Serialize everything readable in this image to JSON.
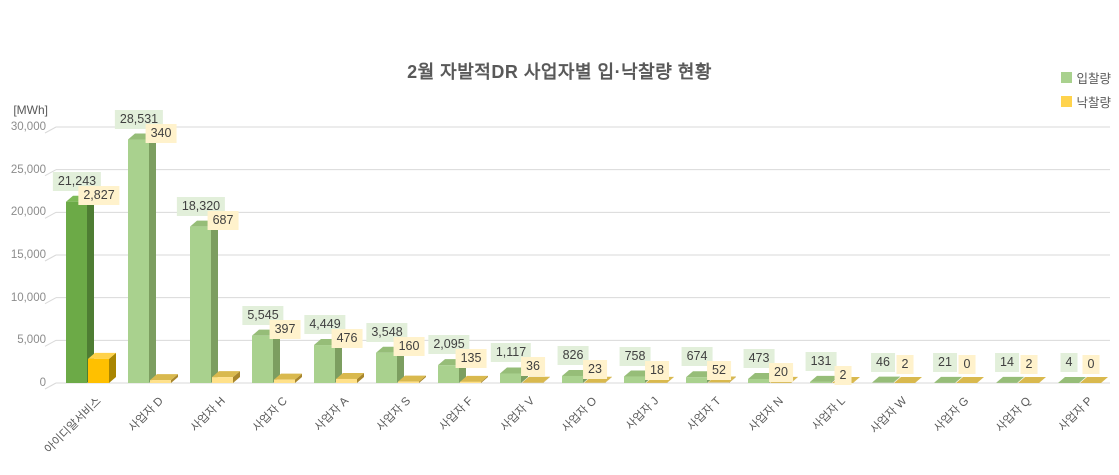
{
  "chart_data": {
    "type": "bar",
    "style": "3d-column",
    "title": "2월 자발적DR 사업자별 입·낙찰량 현황",
    "unit_label": "[MWh]",
    "categories": [
      "아이디알서비스",
      "사업자 D",
      "사업자 H",
      "사업자 C",
      "사업자 A",
      "사업자 S",
      "사업자 F",
      "사업자 V",
      "사업자 O",
      "사업자 J",
      "사업자 T",
      "사업자 N",
      "사업자 L",
      "사업자 W",
      "사업자 G",
      "사업자 Q",
      "사업자 P"
    ],
    "series": [
      {
        "name": "입찰량",
        "values": [
          21243,
          28531,
          18320,
          5545,
          4449,
          3548,
          2095,
          1117,
          826,
          758,
          674,
          473,
          131,
          46,
          21,
          14,
          4
        ],
        "colors": {
          "front": "#a9d18e",
          "top": "#96bd78",
          "side": "#7c9e60"
        },
        "highlight_colors": {
          "front": "#6caa47",
          "top": "#7eba57",
          "side": "#4e7d33"
        },
        "label_bg": "#e2efda",
        "legend_color": "#a9d18e"
      },
      {
        "name": "낙찰량",
        "values": [
          2827,
          340,
          687,
          397,
          476,
          160,
          135,
          36,
          23,
          18,
          52,
          20,
          2,
          2,
          0,
          2,
          0
        ],
        "colors": {
          "front": "#ffe18a",
          "top": "#d9b94e",
          "side": "#a8862c"
        },
        "highlight_colors": {
          "front": "#ffc000",
          "top": "#ffd24b",
          "side": "#a98500"
        },
        "label_bg": "#fff2cc",
        "legend_color": "#ffd34d"
      }
    ],
    "highlight_category_index": 0,
    "highlight_category_note": "first category bars use saturated colors",
    "ylim": [
      0,
      30000
    ],
    "ytick_values": [
      30000,
      25000,
      20000,
      15000,
      10000,
      5000,
      0
    ],
    "yticks": [
      "30,000",
      "25,000",
      "20,000",
      "15,000",
      "10,000",
      "5,000",
      "0"
    ],
    "grid": true,
    "legend_position": "top-right"
  },
  "colors": {
    "background": "#ffffff",
    "grid": "#d9d9d9",
    "axis_text": "#8c8c8c",
    "category_text": "#595959",
    "title_text": "#595959",
    "label_text": "#404040"
  }
}
